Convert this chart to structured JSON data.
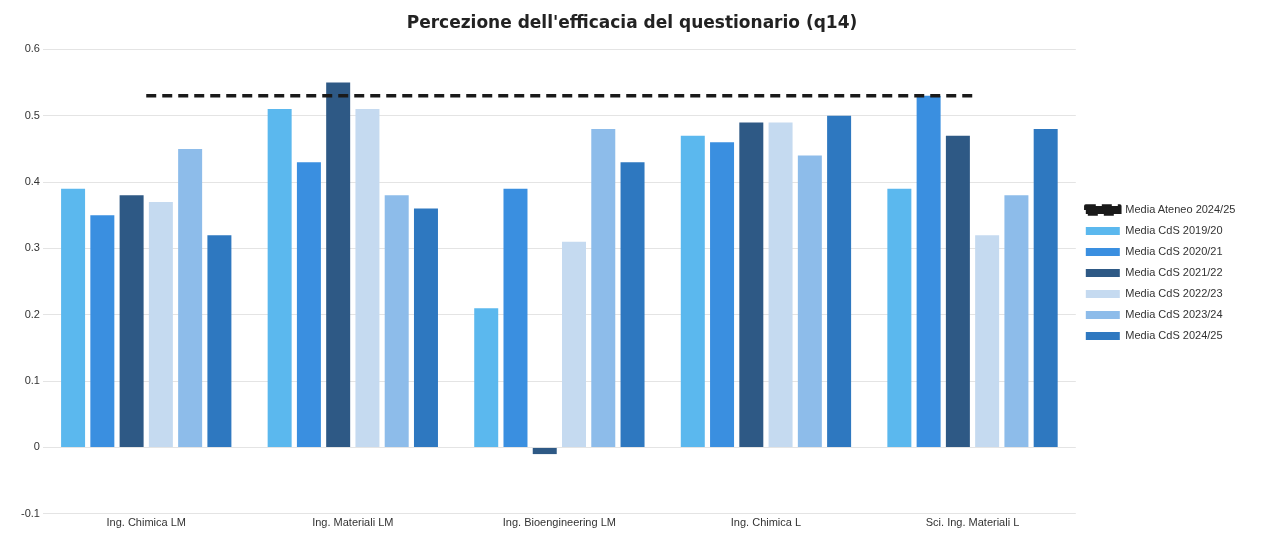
{
  "chart_data": {
    "type": "bar",
    "title": "Percezione dell'efficacia del questionario (q14)",
    "categories": [
      "Ing. Chimica LM",
      "Ing. Materiali LM",
      "Ing. Bioengineering LM",
      "Ing. Chimica L",
      "Sci. Ing. Materiali L"
    ],
    "series": [
      {
        "name": "Media CdS 2019/20",
        "color": "#5bb8ee",
        "values": [
          0.39,
          0.51,
          0.21,
          0.47,
          0.39
        ]
      },
      {
        "name": "Media CdS 2020/21",
        "color": "#3a8fe0",
        "values": [
          0.35,
          0.43,
          0.39,
          0.46,
          0.53
        ]
      },
      {
        "name": "Media CdS 2021/22",
        "color": "#2e5985",
        "values": [
          0.38,
          0.55,
          -0.01,
          0.49,
          0.47
        ]
      },
      {
        "name": "Media CdS 2022/23",
        "color": "#c5daf0",
        "values": [
          0.37,
          0.51,
          0.31,
          0.49,
          0.32
        ]
      },
      {
        "name": "Media CdS 2023/24",
        "color": "#8dbcea",
        "values": [
          0.45,
          0.38,
          0.48,
          0.44,
          0.38
        ]
      },
      {
        "name": "Media CdS 2024/25",
        "color": "#2e78c0",
        "values": [
          0.32,
          0.36,
          0.43,
          0.5,
          0.48
        ]
      },
      {
        "name": "Media Ateneo 2024/25",
        "type": "line",
        "color": "#1a1a1a",
        "line_style": "dashed",
        "marker": "none",
        "values": [
          0.53,
          0.53,
          0.53,
          0.53,
          0.53
        ]
      }
    ],
    "ylim": [
      -0.1,
      0.6
    ],
    "yticks": [
      -0.1,
      0,
      0.1,
      0.2,
      0.3,
      0.4,
      0.5,
      0.6
    ],
    "grid": "y",
    "legend": "right"
  }
}
